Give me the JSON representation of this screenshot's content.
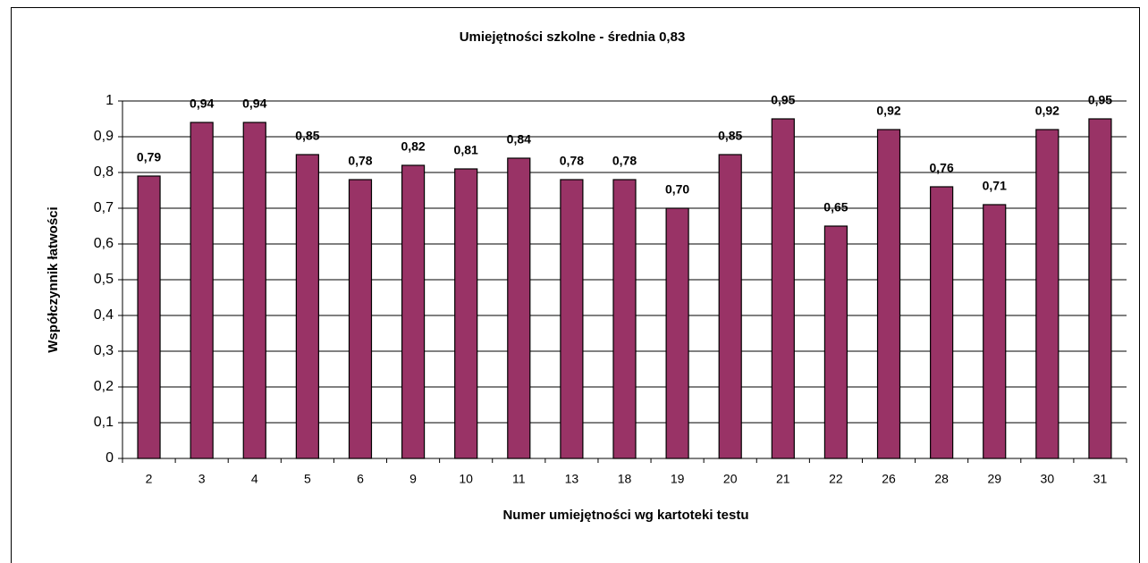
{
  "chart_data": {
    "type": "bar",
    "title": "Umiejętności szkolne - średnia 0,83",
    "x_label": "Numer umiejętności wg kartoteki testu",
    "y_label": "Współczynnik łatwości",
    "categories": [
      "2",
      "3",
      "4",
      "5",
      "6",
      "9",
      "10",
      "11",
      "13",
      "18",
      "19",
      "20",
      "21",
      "22",
      "26",
      "28",
      "29",
      "30",
      "31"
    ],
    "values": [
      0.79,
      0.94,
      0.94,
      0.85,
      0.78,
      0.82,
      0.81,
      0.84,
      0.78,
      0.78,
      0.7,
      0.85,
      0.95,
      0.65,
      0.92,
      0.76,
      0.71,
      0.92,
      0.95
    ],
    "value_labels": [
      "0,79",
      "0,94",
      "0,94",
      "0,85",
      "0,78",
      "0,82",
      "0,81",
      "0,84",
      "0,78",
      "0,78",
      "0,70",
      "0,85",
      "0,95",
      "0,65",
      "0,92",
      "0,76",
      "0,71",
      "0,92",
      "0,95"
    ],
    "color": "#993366",
    "ylim": [
      0,
      1
    ],
    "yticks": [
      0,
      {
        "value": 0.1,
        "label": "0,1"
      },
      {
        "value": 0.2,
        "label": "0,2"
      },
      {
        "value": 0.3,
        "label": "0,3"
      },
      {
        "value": 0.4,
        "label": "0,4"
      },
      {
        "value": 0.5,
        "label": "0,5"
      },
      {
        "value": 0.6,
        "label": "0,6"
      },
      {
        "value": 0.7,
        "label": "0,7"
      },
      {
        "value": 0.8,
        "label": "0,8"
      },
      {
        "value": 0.9,
        "label": "0,9"
      },
      1
    ],
    "grid": true
  }
}
